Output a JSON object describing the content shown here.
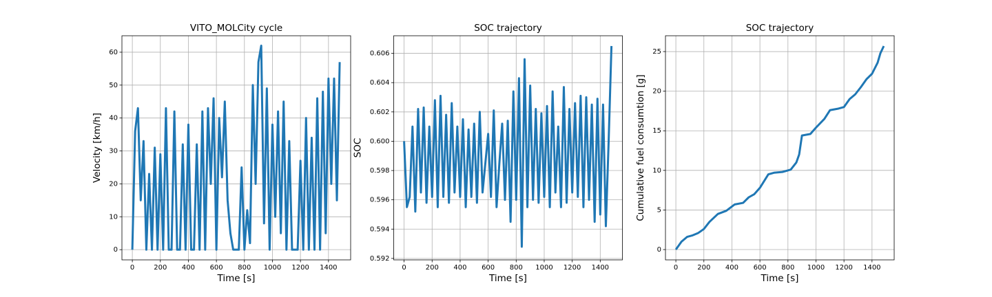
{
  "chart_data": [
    {
      "type": "line",
      "title": "VITO_MOLCity cycle",
      "xlabel": "Time [s]",
      "ylabel": "Velocity [km/h]",
      "x": [
        0,
        20,
        40,
        60,
        80,
        100,
        120,
        140,
        160,
        180,
        200,
        220,
        240,
        260,
        280,
        300,
        320,
        340,
        360,
        380,
        400,
        420,
        440,
        460,
        480,
        500,
        520,
        540,
        560,
        580,
        600,
        620,
        640,
        660,
        680,
        700,
        720,
        740,
        760,
        780,
        800,
        820,
        840,
        860,
        880,
        900,
        920,
        940,
        960,
        980,
        1000,
        1020,
        1040,
        1060,
        1080,
        1100,
        1120,
        1140,
        1160,
        1180,
        1200,
        1220,
        1240,
        1260,
        1280,
        1300,
        1320,
        1340,
        1360,
        1380,
        1400,
        1420,
        1440,
        1460,
        1480
      ],
      "values": [
        0,
        36,
        43,
        15,
        33,
        0,
        23,
        0,
        31,
        0,
        29,
        0,
        43,
        0,
        0,
        42,
        0,
        0,
        32,
        0,
        38,
        0,
        0,
        32,
        0,
        42,
        0,
        43,
        20,
        46,
        0,
        40,
        22,
        45,
        15,
        5,
        0,
        0,
        0,
        25,
        0,
        12,
        2,
        50,
        20,
        57,
        62,
        8,
        49,
        0,
        38,
        10,
        42,
        5,
        45,
        0,
        33,
        0,
        0,
        0,
        27,
        0,
        40,
        0,
        34,
        0,
        46,
        0,
        48,
        5,
        52,
        20,
        52,
        15,
        57
      ],
      "color": "#1f77b4",
      "xlim": [
        -74.2,
        1558.2
      ],
      "xticks": [
        0,
        200,
        400,
        600,
        800,
        1000,
        1200,
        1400
      ],
      "ylim": [
        -3.1,
        65.0
      ],
      "yticks": [
        0,
        10,
        20,
        30,
        40,
        50,
        60
      ],
      "grid": true
    },
    {
      "type": "line",
      "title": "SOC trajectory",
      "xlabel": "Time [s]",
      "ylabel": "SOC",
      "x": [
        0,
        20,
        40,
        60,
        80,
        100,
        120,
        140,
        160,
        180,
        200,
        220,
        240,
        260,
        280,
        300,
        320,
        340,
        360,
        380,
        400,
        420,
        440,
        460,
        480,
        500,
        520,
        540,
        560,
        580,
        600,
        620,
        640,
        660,
        680,
        700,
        720,
        740,
        760,
        780,
        800,
        820,
        840,
        860,
        880,
        900,
        920,
        940,
        960,
        980,
        1000,
        1020,
        1040,
        1060,
        1080,
        1100,
        1120,
        1140,
        1160,
        1180,
        1200,
        1220,
        1240,
        1260,
        1280,
        1300,
        1320,
        1340,
        1360,
        1380,
        1400,
        1420,
        1440,
        1460,
        1480
      ],
      "values": [
        0.6,
        0.5955,
        0.5962,
        0.601,
        0.5952,
        0.6022,
        0.5965,
        0.6023,
        0.5958,
        0.601,
        0.5962,
        0.6028,
        0.5955,
        0.6031,
        0.5962,
        0.6018,
        0.5958,
        0.6026,
        0.5965,
        0.601,
        0.5962,
        0.6015,
        0.5955,
        0.6008,
        0.5962,
        0.6012,
        0.5958,
        0.602,
        0.5965,
        0.5985,
        0.6005,
        0.5962,
        0.6021,
        0.5955,
        0.5985,
        0.6012,
        0.596,
        0.6014,
        0.5945,
        0.6034,
        0.596,
        0.6043,
        0.5928,
        0.6056,
        0.5955,
        0.6038,
        0.596,
        0.6022,
        0.5958,
        0.6019,
        0.5962,
        0.6024,
        0.5955,
        0.6034,
        0.5965,
        0.601,
        0.5955,
        0.6037,
        0.5958,
        0.6022,
        0.5965,
        0.6026,
        0.5962,
        0.6031,
        0.5955,
        0.603,
        0.596,
        0.6025,
        0.5945,
        0.6029,
        0.595,
        0.6025,
        0.5942,
        0.6,
        0.6065
      ],
      "color": "#1f77b4",
      "xlim": [
        -74.2,
        1558.2
      ],
      "xticks": [
        0,
        200,
        400,
        600,
        800,
        1000,
        1200,
        1400
      ],
      "ylim": [
        0.5919,
        0.6072
      ],
      "yticks": [
        0.592,
        0.594,
        0.596,
        0.598,
        {
          "value": 0.6,
          "label": "0.600"
        },
        0.602,
        0.604,
        0.606
      ],
      "grid": true
    },
    {
      "type": "line",
      "title": "SOC trajectory",
      "xlabel": "Time [s]",
      "ylabel": "Cumulative fuel consumtion [g]",
      "x": [
        0,
        40,
        80,
        120,
        160,
        200,
        240,
        300,
        360,
        420,
        480,
        520,
        560,
        600,
        660,
        700,
        760,
        820,
        860,
        880,
        900,
        960,
        1000,
        1060,
        1100,
        1160,
        1200,
        1240,
        1280,
        1320,
        1360,
        1400,
        1440,
        1460,
        1484
      ],
      "values": [
        0,
        1.0,
        1.6,
        1.8,
        2.1,
        2.6,
        3.5,
        4.5,
        4.9,
        5.7,
        5.9,
        6.6,
        7.0,
        7.8,
        9.5,
        9.7,
        9.8,
        10.1,
        11.0,
        12.0,
        14.4,
        14.6,
        15.4,
        16.5,
        17.6,
        17.8,
        18.0,
        19.0,
        19.6,
        20.5,
        21.5,
        22.2,
        23.6,
        24.8,
        25.7
      ],
      "color": "#1f77b4",
      "xlim": [
        -74.2,
        1558.2
      ],
      "xticks": [
        0,
        200,
        400,
        600,
        800,
        1000,
        1200,
        1400
      ],
      "ylim": [
        -1.3,
        27.0
      ],
      "yticks": [
        0,
        5,
        10,
        15,
        20,
        25
      ],
      "grid": true
    }
  ]
}
